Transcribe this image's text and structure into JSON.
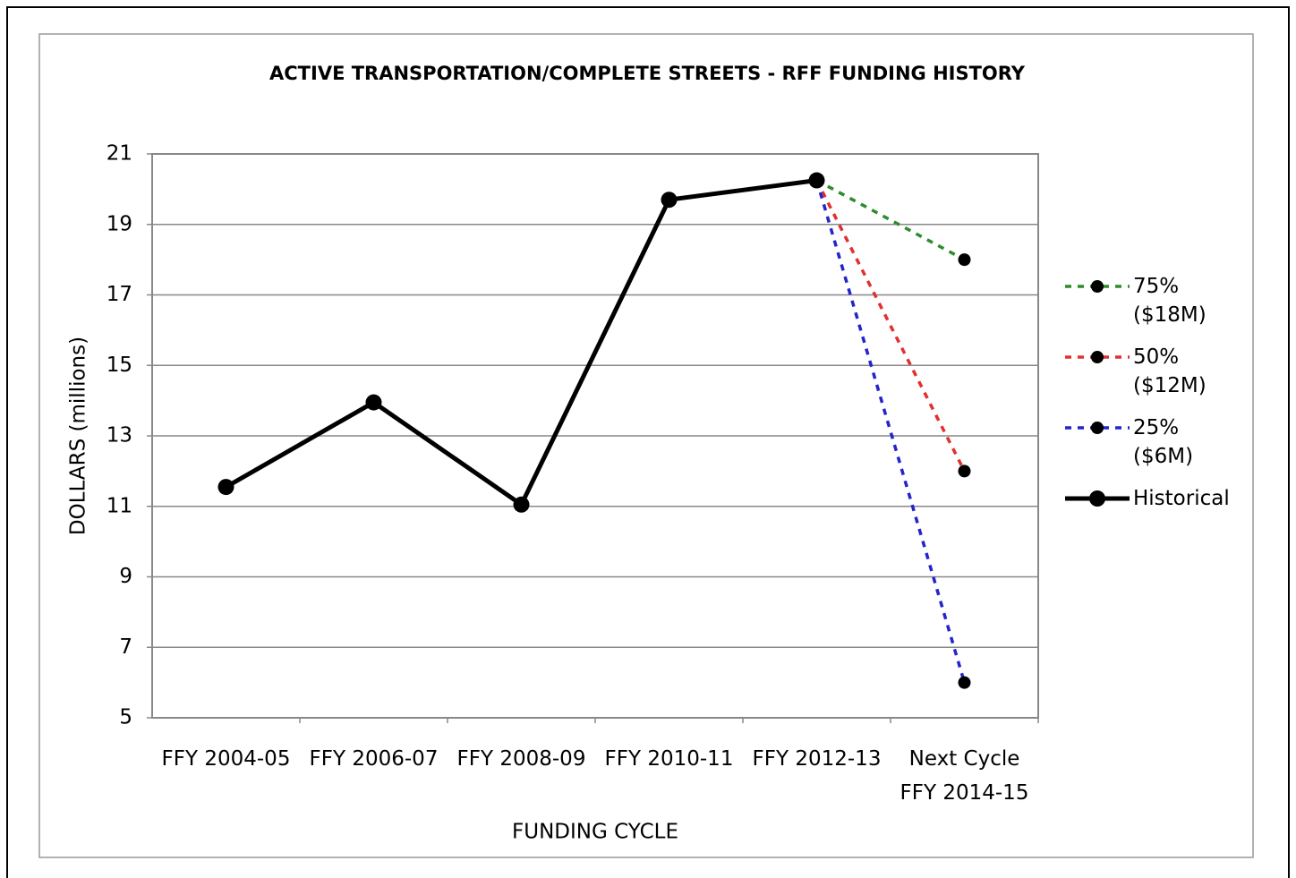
{
  "chart_data": {
    "type": "line",
    "title": "ACTIVE TRANSPORTATION/COMPLETE STREETS - RFF FUNDING HISTORY",
    "x_label": "FUNDING CYCLE",
    "y_label": "DOLLARS (millions)",
    "categories": [
      "FFY 2004-05",
      "FFY 2006-07",
      "FFY 2008-09",
      "FFY 2010-11",
      "FFY 2012-13",
      "Next Cycle FFY 2014-15"
    ],
    "series": [
      {
        "name": "75% ($18M)",
        "color": "#2e8b2e",
        "dashed": true,
        "values": [
          null,
          null,
          null,
          null,
          20.25,
          18
        ]
      },
      {
        "name": "50% ($12M)",
        "color": "#e03030",
        "dashed": true,
        "values": [
          null,
          null,
          null,
          null,
          20.25,
          12
        ]
      },
      {
        "name": "25% ($6M)",
        "color": "#2424cc",
        "dashed": true,
        "values": [
          null,
          null,
          null,
          null,
          20.25,
          6
        ]
      },
      {
        "name": "Historical",
        "color": "#000000",
        "dashed": false,
        "values": [
          11.55,
          13.95,
          11.05,
          19.7,
          20.25,
          null
        ]
      }
    ],
    "ylim": [
      5,
      21
    ],
    "yticks": [
      5,
      7,
      9,
      11,
      13,
      15,
      17,
      19,
      21
    ],
    "grid": true,
    "legend": "right"
  }
}
